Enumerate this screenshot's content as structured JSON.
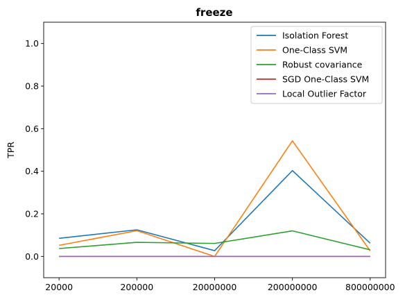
{
  "chart_data": {
    "type": "line",
    "title": "freeze",
    "xlabel": "",
    "ylabel": "TPR",
    "categories": [
      "20000",
      "200000",
      "20000000",
      "200000000",
      "800000000"
    ],
    "ylim": [
      -0.1,
      1.1
    ],
    "yticks": [
      "0.0",
      "0.2",
      "0.4",
      "0.6",
      "0.8",
      "1.0"
    ],
    "grid": false,
    "legend_position": "top-right",
    "series": [
      {
        "name": "Isolation Forest",
        "color": "#1f77b4",
        "values": [
          0.085,
          0.125,
          0.027,
          0.403,
          0.062
        ]
      },
      {
        "name": "One-Class SVM",
        "color": "#ff7f0e",
        "values": [
          0.052,
          0.121,
          0.0,
          0.543,
          0.026
        ]
      },
      {
        "name": "Robust covariance",
        "color": "#2ca02c",
        "values": [
          0.037,
          0.066,
          0.061,
          0.12,
          0.031
        ]
      },
      {
        "name": "SGD One-Class SVM",
        "color": "#d62728",
        "values": [
          0.0,
          0.0,
          0.0,
          0.0,
          0.0
        ]
      },
      {
        "name": "Local Outlier Factor",
        "color": "#9467bd",
        "values": [
          0.0,
          0.0,
          0.0,
          0.0,
          0.0
        ]
      }
    ]
  }
}
